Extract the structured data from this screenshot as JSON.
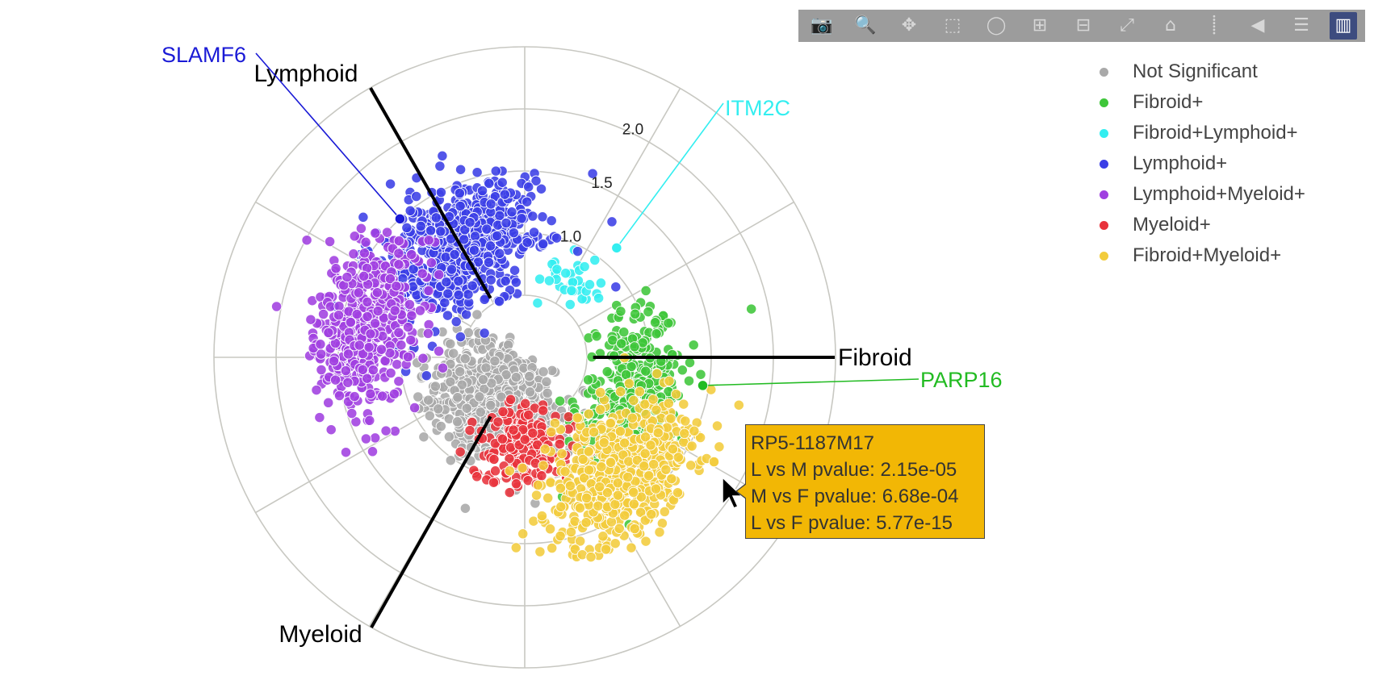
{
  "chart_data": {
    "type": "scatter",
    "subtype": "polar",
    "radial_ticks": [
      "1.0",
      "1.5",
      "2.0"
    ],
    "radial_range": [
      0,
      2.5
    ],
    "angular_grid_step_deg": 30,
    "axes": [
      {
        "label": "Fibroid",
        "angle_deg": 0
      },
      {
        "label": "Lymphoid",
        "angle_deg": 120
      },
      {
        "label": "Myeloid",
        "angle_deg": 240
      }
    ],
    "series": [
      {
        "name": "Not Significant",
        "color": "#a9a9a9",
        "angle_deg": 235,
        "r_center": 0.45,
        "spread_r": 0.4,
        "spread_deg": 70,
        "count": 900
      },
      {
        "name": "Fibroid+",
        "color": "#3fc63a",
        "angle_deg": 345,
        "r_center": 0.95,
        "spread_r": 0.32,
        "spread_deg": 40,
        "count": 360
      },
      {
        "name": "Fibroid+Lymphoid+",
        "color": "#33eef0",
        "angle_deg": 58,
        "r_center": 0.75,
        "spread_r": 0.22,
        "spread_deg": 22,
        "count": 34
      },
      {
        "name": "Lymphoid+",
        "color": "#3b3fe6",
        "angle_deg": 122,
        "r_center": 1.1,
        "spread_r": 0.4,
        "spread_deg": 38,
        "count": 720
      },
      {
        "name": "Lymphoid+Myeloid+",
        "color": "#a040e0",
        "angle_deg": 168,
        "r_center": 1.35,
        "spread_r": 0.35,
        "spread_deg": 30,
        "count": 520
      },
      {
        "name": "Myeloid+",
        "color": "#e8333c",
        "angle_deg": 272,
        "r_center": 0.75,
        "spread_r": 0.3,
        "spread_deg": 30,
        "count": 200
      },
      {
        "name": "Fibroid+Myeloid+",
        "color": "#f2cc3c",
        "angle_deg": 310,
        "r_center": 1.25,
        "spread_r": 0.4,
        "spread_deg": 30,
        "count": 620
      }
    ],
    "annotations": [
      {
        "text": "SLAMF6",
        "color": "#1a1ad6",
        "point_r": 1.5,
        "point_angle_deg": 132
      },
      {
        "text": "ITM2C",
        "color": "#33eef0",
        "point_r": 1.15,
        "point_angle_deg": 50
      },
      {
        "text": "PARP16",
        "color": "#22bb22",
        "point_r": 1.45,
        "point_angle_deg": 351
      }
    ],
    "legend_position": "top-right"
  },
  "tooltip": {
    "title": "RP5-1187M17",
    "lines": [
      "L vs M pvalue: 2.15e-05",
      "M vs F pvalue: 6.68e-04",
      "L vs F pvalue: 5.77e-15"
    ]
  },
  "modebar": {
    "buttons": [
      {
        "name": "camera-icon",
        "glyph": "📷"
      },
      {
        "name": "zoom-icon",
        "glyph": "🔍"
      },
      {
        "name": "pan-icon",
        "glyph": "✥"
      },
      {
        "name": "box-select-icon",
        "glyph": "⬚"
      },
      {
        "name": "lasso-select-icon",
        "glyph": "◯"
      },
      {
        "name": "zoom-in-icon",
        "glyph": "⊞"
      },
      {
        "name": "zoom-out-icon",
        "glyph": "⊟"
      },
      {
        "name": "autoscale-icon",
        "glyph": "⤢"
      },
      {
        "name": "reset-axes-icon",
        "glyph": "⌂"
      },
      {
        "name": "spike-lines-icon",
        "glyph": "⸽"
      },
      {
        "name": "hover-closest-icon",
        "glyph": "◀"
      },
      {
        "name": "hover-compare-icon",
        "glyph": "☰"
      },
      {
        "name": "plotly-logo-icon",
        "glyph": "▥"
      }
    ]
  }
}
